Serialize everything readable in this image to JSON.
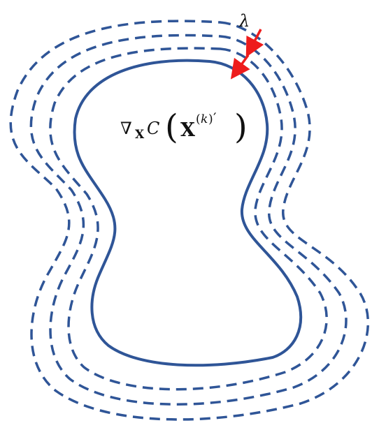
{
  "diagram": {
    "labels": {
      "step_size": "λ",
      "gradient_nabla": "∇",
      "gradient_subscript": "X",
      "cost_symbol": "C",
      "paren_open": "(",
      "paren_close": ")",
      "argument_symbol": "X",
      "superscript_open": "(",
      "superscript_index": "k",
      "superscript_close": ")",
      "prime": "′"
    },
    "colors": {
      "contour": "#2f5597",
      "arrow": "#ee1c1c",
      "text": "#111111"
    }
  }
}
